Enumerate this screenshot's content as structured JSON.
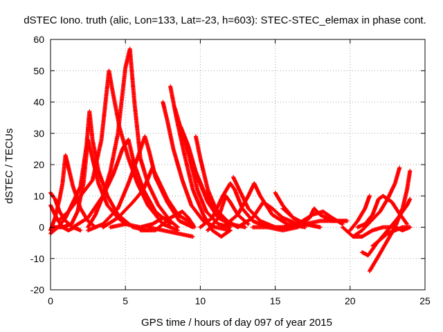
{
  "chart_data": {
    "type": "scatter",
    "title": "dSTEC Iono. truth (alic, Lon=133, Lat=-23, h=603): STEC-STEC_elemax in phase cont.",
    "xlabel": "GPS time / hours of day 097 of year 2015",
    "ylabel": "dSTEC  / TECUs",
    "xlim": [
      0,
      25
    ],
    "ylim": [
      -20,
      60
    ],
    "xticks": [
      "0",
      "5",
      "10",
      "15",
      "20",
      "25"
    ],
    "yticks": [
      "-20",
      "-10",
      "0",
      "10",
      "20",
      "30",
      "40",
      "50",
      "60"
    ],
    "xtick_values": [
      0,
      5,
      10,
      15,
      20,
      25
    ],
    "ytick_values": [
      -20,
      -10,
      0,
      10,
      20,
      30,
      40,
      50,
      60
    ],
    "grid": true,
    "marker": "+",
    "color": "#ff0000",
    "arcs": [
      [
        [
          0.0,
          11
        ],
        [
          0.3,
          9
        ],
        [
          0.6,
          5
        ],
        [
          1.0,
          2
        ],
        [
          1.5,
          0
        ],
        [
          2.0,
          -1
        ]
      ],
      [
        [
          0.0,
          7
        ],
        [
          0.4,
          3
        ],
        [
          0.8,
          0
        ],
        [
          1.2,
          -1
        ],
        [
          1.6,
          0
        ]
      ],
      [
        [
          0.0,
          -1
        ],
        [
          0.3,
          3
        ],
        [
          0.6,
          9
        ],
        [
          0.8,
          14
        ],
        [
          1.0,
          23
        ],
        [
          1.2,
          19
        ],
        [
          1.5,
          13
        ],
        [
          2.0,
          6
        ],
        [
          2.5,
          2
        ],
        [
          3.0,
          0
        ]
      ],
      [
        [
          0.0,
          -2
        ],
        [
          0.5,
          0
        ],
        [
          1.0,
          3
        ],
        [
          1.5,
          8
        ],
        [
          2.0,
          13
        ],
        [
          2.4,
          26
        ],
        [
          2.6,
          37
        ],
        [
          2.8,
          28
        ],
        [
          3.2,
          18
        ],
        [
          3.8,
          10
        ],
        [
          4.5,
          4
        ],
        [
          5.5,
          0
        ],
        [
          6.5,
          -1
        ]
      ],
      [
        [
          0.2,
          0
        ],
        [
          0.8,
          0
        ],
        [
          1.4,
          1
        ],
        [
          1.8,
          5
        ],
        [
          2.2,
          14
        ],
        [
          2.5,
          28
        ],
        [
          2.8,
          22
        ],
        [
          3.2,
          14
        ],
        [
          3.8,
          7
        ],
        [
          4.5,
          3
        ],
        [
          5.0,
          1
        ]
      ],
      [
        [
          0.5,
          2
        ],
        [
          1.2,
          5
        ],
        [
          2.0,
          10
        ],
        [
          2.8,
          15
        ],
        [
          3.4,
          28
        ],
        [
          3.9,
          50
        ],
        [
          4.2,
          42
        ],
        [
          4.6,
          32
        ],
        [
          5.2,
          22
        ],
        [
          5.8,
          14
        ],
        [
          6.5,
          7
        ],
        [
          7.5,
          1
        ],
        [
          8.5,
          -1
        ]
      ],
      [
        [
          2.5,
          0
        ],
        [
          3.0,
          4
        ],
        [
          3.5,
          10
        ],
        [
          4.0,
          18
        ],
        [
          4.5,
          30
        ],
        [
          5.0,
          51
        ],
        [
          5.3,
          57
        ],
        [
          5.6,
          40
        ],
        [
          6.0,
          22
        ],
        [
          6.5,
          14
        ],
        [
          7.2,
          7
        ],
        [
          8.0,
          2
        ]
      ],
      [
        [
          1.5,
          0
        ],
        [
          2.5,
          3
        ],
        [
          3.5,
          10
        ],
        [
          4.2,
          17
        ],
        [
          4.8,
          25
        ],
        [
          5.2,
          28
        ],
        [
          5.6,
          20
        ],
        [
          6.2,
          12
        ],
        [
          7.0,
          5
        ],
        [
          8.0,
          1
        ]
      ],
      [
        [
          2.5,
          -1
        ],
        [
          3.5,
          1
        ],
        [
          4.5,
          6
        ],
        [
          5.2,
          14
        ],
        [
          5.8,
          22
        ],
        [
          6.3,
          29
        ],
        [
          6.6,
          24
        ],
        [
          7.0,
          16
        ],
        [
          7.8,
          8
        ],
        [
          8.6,
          2
        ],
        [
          9.5,
          0
        ]
      ],
      [
        [
          3.5,
          0
        ],
        [
          4.5,
          3
        ],
        [
          5.5,
          8
        ],
        [
          6.2,
          12
        ],
        [
          6.8,
          19
        ],
        [
          7.2,
          15
        ],
        [
          7.8,
          9
        ],
        [
          8.5,
          4
        ],
        [
          9.5,
          1
        ]
      ],
      [
        [
          4.0,
          0
        ],
        [
          5.0,
          1
        ],
        [
          6.0,
          0
        ],
        [
          6.8,
          1
        ],
        [
          7.5,
          3
        ],
        [
          8.0,
          2
        ],
        [
          8.5,
          0
        ]
      ],
      [
        [
          6.0,
          -1
        ],
        [
          7.0,
          -1
        ],
        [
          8.0,
          3
        ],
        [
          8.8,
          5
        ],
        [
          9.2,
          3
        ],
        [
          9.6,
          0
        ]
      ],
      [
        [
          7.5,
          40
        ],
        [
          7.8,
          34
        ],
        [
          8.2,
          25
        ],
        [
          8.8,
          15
        ],
        [
          9.4,
          7
        ],
        [
          10.2,
          2
        ],
        [
          11.0,
          0
        ],
        [
          12.0,
          -1
        ]
      ],
      [
        [
          8.0,
          45
        ],
        [
          8.4,
          35
        ],
        [
          8.9,
          24
        ],
        [
          9.5,
          12
        ],
        [
          10.2,
          4
        ],
        [
          10.8,
          -1
        ],
        [
          11.4,
          -3
        ],
        [
          12.0,
          -1
        ]
      ],
      [
        [
          8.3,
          38
        ],
        [
          8.8,
          30
        ],
        [
          9.3,
          22
        ],
        [
          9.8,
          12
        ],
        [
          10.4,
          5
        ],
        [
          11.2,
          1
        ],
        [
          12.0,
          0
        ]
      ],
      [
        [
          8.7,
          32
        ],
        [
          9.2,
          26
        ],
        [
          9.8,
          16
        ],
        [
          10.5,
          8
        ],
        [
          11.2,
          3
        ],
        [
          12.0,
          1
        ],
        [
          13.0,
          0
        ]
      ],
      [
        [
          9.0,
          28
        ],
        [
          9.5,
          20
        ],
        [
          10.2,
          12
        ],
        [
          11.0,
          6
        ],
        [
          11.8,
          2
        ],
        [
          12.5,
          0
        ]
      ],
      [
        [
          6.5,
          0
        ],
        [
          7.5,
          -1
        ],
        [
          8.5,
          -2
        ],
        [
          9.5,
          -3
        ]
      ],
      [
        [
          9.7,
          29
        ],
        [
          10.0,
          22
        ],
        [
          10.5,
          12
        ],
        [
          11.2,
          4
        ],
        [
          11.8,
          1
        ]
      ],
      [
        [
          10.0,
          0
        ],
        [
          10.8,
          3
        ],
        [
          11.5,
          10
        ],
        [
          12.0,
          14
        ],
        [
          12.3,
          12
        ],
        [
          12.8,
          6
        ],
        [
          13.5,
          2
        ],
        [
          14.5,
          0
        ]
      ],
      [
        [
          10.5,
          -1
        ],
        [
          11.2,
          3
        ],
        [
          11.7,
          10
        ],
        [
          12.0,
          8
        ],
        [
          12.5,
          4
        ],
        [
          13.2,
          1
        ]
      ],
      [
        [
          12.2,
          16
        ],
        [
          12.6,
          12
        ],
        [
          13.2,
          6
        ],
        [
          14.0,
          2
        ],
        [
          15.0,
          0
        ],
        [
          16.0,
          0
        ]
      ],
      [
        [
          11.5,
          0
        ],
        [
          12.5,
          4
        ],
        [
          13.2,
          10
        ],
        [
          13.6,
          14
        ],
        [
          14.0,
          10
        ],
        [
          14.8,
          4
        ],
        [
          15.8,
          1
        ],
        [
          17.0,
          0
        ]
      ],
      [
        [
          12.5,
          0
        ],
        [
          13.5,
          3
        ],
        [
          14.2,
          8
        ],
        [
          14.8,
          6
        ],
        [
          15.5,
          3
        ],
        [
          16.5,
          1
        ]
      ],
      [
        [
          15.0,
          11
        ],
        [
          15.5,
          7
        ],
        [
          16.2,
          3
        ],
        [
          17.0,
          1
        ],
        [
          18.0,
          0
        ]
      ],
      [
        [
          15.5,
          6
        ],
        [
          16.2,
          3
        ],
        [
          17.0,
          1
        ],
        [
          18.0,
          0
        ]
      ],
      [
        [
          13.5,
          0
        ],
        [
          14.5,
          0
        ],
        [
          15.5,
          0
        ],
        [
          16.5,
          1
        ],
        [
          17.5,
          4
        ],
        [
          18.2,
          5
        ],
        [
          18.8,
          3
        ],
        [
          19.5,
          1
        ]
      ],
      [
        [
          14.5,
          0
        ],
        [
          15.5,
          -1
        ],
        [
          16.5,
          0
        ],
        [
          17.3,
          3
        ],
        [
          17.6,
          6
        ],
        [
          18.0,
          4
        ],
        [
          18.8,
          2
        ],
        [
          19.8,
          2
        ]
      ],
      [
        [
          16.0,
          0
        ],
        [
          17.0,
          1
        ],
        [
          18.0,
          2
        ],
        [
          19.0,
          2
        ],
        [
          19.8,
          2
        ]
      ],
      [
        [
          19.5,
          0
        ],
        [
          20.2,
          -3
        ],
        [
          20.8,
          -1
        ],
        [
          21.4,
          2
        ],
        [
          22.0,
          5
        ],
        [
          22.5,
          9
        ],
        [
          23.0,
          14
        ],
        [
          23.3,
          19
        ]
      ],
      [
        [
          20.5,
          0
        ],
        [
          21.0,
          1
        ],
        [
          21.5,
          4
        ],
        [
          21.9,
          9
        ],
        [
          22.2,
          10
        ],
        [
          22.8,
          8
        ],
        [
          23.2,
          5
        ],
        [
          23.8,
          1
        ]
      ],
      [
        [
          20.0,
          -1
        ],
        [
          20.5,
          2
        ],
        [
          21.0,
          6
        ],
        [
          21.3,
          10
        ]
      ],
      [
        [
          21.3,
          -14
        ],
        [
          21.8,
          -10
        ],
        [
          22.4,
          -5
        ],
        [
          23.0,
          0
        ],
        [
          23.5,
          6
        ],
        [
          23.8,
          12
        ],
        [
          24.0,
          18
        ]
      ],
      [
        [
          20.8,
          -8
        ],
        [
          21.2,
          -9
        ],
        [
          21.8,
          -5
        ],
        [
          22.5,
          -1
        ],
        [
          23.2,
          3
        ],
        [
          23.8,
          7
        ],
        [
          24.0,
          9
        ]
      ],
      [
        [
          20.2,
          -3
        ],
        [
          20.8,
          -3
        ],
        [
          21.5,
          -1
        ],
        [
          22.2,
          0
        ],
        [
          23.0,
          0
        ],
        [
          23.5,
          -1
        ],
        [
          24.0,
          0
        ]
      ],
      [
        [
          21.5,
          -6
        ],
        [
          22.0,
          -4
        ],
        [
          22.5,
          -2
        ],
        [
          23.0,
          -1
        ],
        [
          23.5,
          0
        ],
        [
          24.0,
          0
        ]
      ]
    ]
  }
}
